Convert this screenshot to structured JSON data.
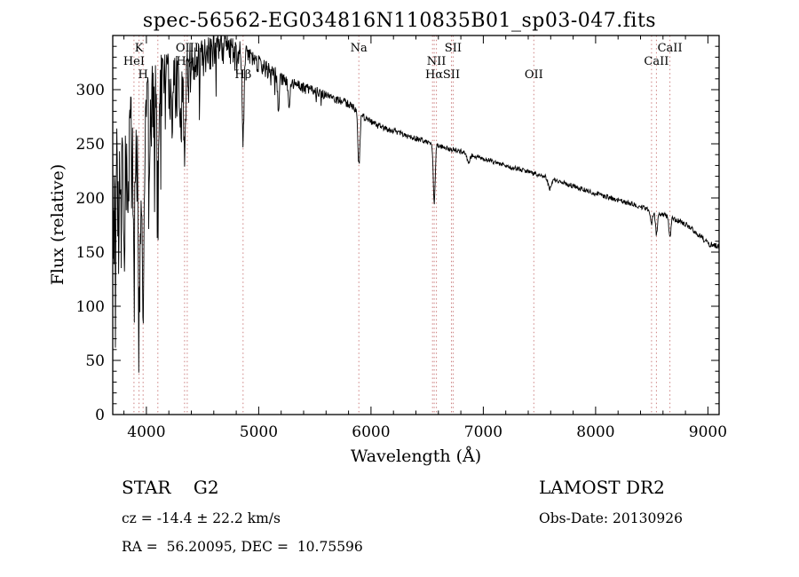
{
  "title": "spec-56562-EG034816N110835B01_sp03-047.fits",
  "footer": {
    "class_label": "STAR    G2",
    "survey": "LAMOST DR2",
    "cz": "cz = -14.4 ± 22.2 km/s",
    "obs_date": "Obs-Date: 20130926",
    "coords": "RA =  56.20095, DEC =  10.75596"
  },
  "chart_data": {
    "type": "line",
    "title": "spec-56562-EG034816N110835B01_sp03-047.fits",
    "xlabel": "Wavelength (Å)",
    "ylabel": "Flux (relative)",
    "xlim": [
      3700,
      9100
    ],
    "ylim": [
      0,
      350
    ],
    "xticks": [
      4000,
      5000,
      6000,
      7000,
      8000,
      9000
    ],
    "yticks": [
      0,
      50,
      100,
      150,
      200,
      250,
      300
    ],
    "x_minor_step": 200,
    "y_minor_step": 10,
    "grid": false,
    "legend": "none",
    "line_color": "#000000",
    "marker_color": "#cc8080",
    "continuum": [
      [
        3700,
        225
      ],
      [
        3750,
        240
      ],
      [
        3800,
        256
      ],
      [
        3850,
        268
      ],
      [
        3900,
        266
      ],
      [
        3950,
        263
      ],
      [
        4000,
        286
      ],
      [
        4050,
        300
      ],
      [
        4100,
        306
      ],
      [
        4150,
        312
      ],
      [
        4200,
        317
      ],
      [
        4250,
        315
      ],
      [
        4300,
        318
      ],
      [
        4350,
        323
      ],
      [
        4400,
        330
      ],
      [
        4450,
        334
      ],
      [
        4500,
        337
      ],
      [
        4600,
        341
      ],
      [
        4700,
        342
      ],
      [
        4800,
        338
      ],
      [
        4900,
        334
      ],
      [
        5000,
        326
      ],
      [
        5100,
        318
      ],
      [
        5200,
        312
      ],
      [
        5300,
        306
      ],
      [
        5400,
        302
      ],
      [
        5500,
        299
      ],
      [
        5600,
        295
      ],
      [
        5700,
        291
      ],
      [
        5800,
        287
      ],
      [
        5900,
        278
      ],
      [
        6000,
        270
      ],
      [
        6100,
        265
      ],
      [
        6200,
        262
      ],
      [
        6300,
        258
      ],
      [
        6400,
        255
      ],
      [
        6500,
        252
      ],
      [
        6600,
        248
      ],
      [
        6800,
        243
      ],
      [
        7000,
        236
      ],
      [
        7200,
        230
      ],
      [
        7400,
        224
      ],
      [
        7600,
        218
      ],
      [
        7800,
        211
      ],
      [
        8000,
        204
      ],
      [
        8200,
        198
      ],
      [
        8400,
        192
      ],
      [
        8500,
        188
      ],
      [
        8600,
        185
      ],
      [
        8700,
        181
      ],
      [
        8800,
        176
      ],
      [
        8900,
        168
      ],
      [
        9000,
        158
      ],
      [
        9100,
        155
      ]
    ],
    "absorption_lines": [
      {
        "center": 3750,
        "depth": 60,
        "width": 6
      },
      {
        "center": 3771,
        "depth": 70,
        "width": 6
      },
      {
        "center": 3798,
        "depth": 85,
        "width": 6
      },
      {
        "center": 3835,
        "depth": 100,
        "width": 7
      },
      {
        "center": 3889,
        "depth": 130,
        "width": 7
      },
      {
        "center": 3934,
        "depth": 160,
        "width": 8
      },
      {
        "center": 3970,
        "depth": 195,
        "width": 8
      },
      {
        "center": 4102,
        "depth": 95,
        "width": 8
      },
      {
        "center": 4305,
        "depth": 45,
        "width": 8
      },
      {
        "center": 4340,
        "depth": 85,
        "width": 8
      },
      {
        "center": 4861,
        "depth": 80,
        "width": 8
      },
      {
        "center": 5175,
        "depth": 30,
        "width": 8
      },
      {
        "center": 5270,
        "depth": 22,
        "width": 7
      },
      {
        "center": 5892,
        "depth": 48,
        "width": 9
      },
      {
        "center": 6563,
        "depth": 55,
        "width": 8
      },
      {
        "center": 6870,
        "depth": 8,
        "width": 12
      },
      {
        "center": 7594,
        "depth": 10,
        "width": 14
      },
      {
        "center": 8498,
        "depth": 12,
        "width": 8
      },
      {
        "center": 8542,
        "depth": 20,
        "width": 9
      },
      {
        "center": 8662,
        "depth": 18,
        "width": 9
      }
    ],
    "noise_profile": [
      [
        3700,
        38
      ],
      [
        3850,
        33
      ],
      [
        4000,
        27
      ],
      [
        4200,
        21
      ],
      [
        4400,
        15
      ],
      [
        4600,
        11
      ],
      [
        4800,
        9
      ],
      [
        5000,
        7
      ],
      [
        5300,
        5
      ],
      [
        5600,
        4
      ],
      [
        6000,
        3
      ],
      [
        6500,
        2.4
      ],
      [
        7000,
        2.2
      ],
      [
        8000,
        2.2
      ],
      [
        8600,
        2.4
      ],
      [
        9100,
        2.8
      ]
    ],
    "downward_bias": [
      [
        3700,
        2.6
      ],
      [
        4200,
        2.3
      ],
      [
        4600,
        1.9
      ],
      [
        5000,
        1.5
      ],
      [
        5500,
        1.15
      ],
      [
        6000,
        1.0
      ],
      [
        9100,
        1.0
      ]
    ],
    "spike_probability": [
      [
        3700,
        0.1
      ],
      [
        4300,
        0.07
      ],
      [
        4800,
        0.04
      ],
      [
        5300,
        0.02
      ],
      [
        5600,
        0.01
      ]
    ],
    "line_markers": [
      {
        "label": "K",
        "wavelength": 3934,
        "row": 0
      },
      {
        "label": "OIII",
        "wavelength": 4363,
        "row": 0
      },
      {
        "label": "Na",
        "wavelength": 5892,
        "row": 0
      },
      {
        "label": "SII",
        "wavelength": 6731,
        "row": 0
      },
      {
        "label": "CaII",
        "wavelength": 8662,
        "row": 0
      },
      {
        "label": "HeI",
        "wavelength": 3889,
        "row": 1
      },
      {
        "label": "Hγ",
        "wavelength": 4340,
        "row": 1
      },
      {
        "label": "NII",
        "wavelength": 6583,
        "row": 1
      },
      {
        "label": "CaII",
        "wavelength": 8542,
        "row": 1
      },
      {
        "label": "H",
        "wavelength": 3970,
        "row": 2
      },
      {
        "label": "Hβ",
        "wavelength": 4861,
        "row": 2
      },
      {
        "label": "Hα",
        "wavelength": 6563,
        "row": 2
      },
      {
        "label": "SII",
        "wavelength": 6716,
        "row": 2
      },
      {
        "label": "OII",
        "wavelength": 7450,
        "row": 2
      }
    ],
    "extra_marker_lines": [
      4102,
      6548,
      8498
    ]
  }
}
